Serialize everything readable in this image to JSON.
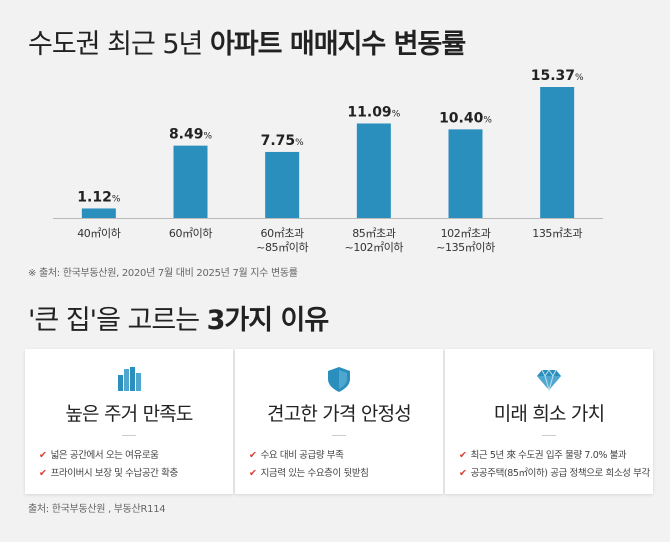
{
  "title_regular": "수도권 최근 5년 ",
  "title_bold": "아파트 매매지수 변동률",
  "chart_data": {
    "type": "bar",
    "title": "수도권 최근 5년 아파트 매매지수 변동률",
    "categories": [
      [
        "40㎡이하"
      ],
      [
        "60㎡이하"
      ],
      [
        "60㎡초과",
        "~85㎡이하"
      ],
      [
        "85㎡초과",
        "~102㎡이하"
      ],
      [
        "102㎡초과",
        "~135㎡이하"
      ],
      [
        "135㎡초과"
      ]
    ],
    "values": [
      1.12,
      8.49,
      7.75,
      11.09,
      10.4,
      15.37
    ],
    "value_labels": [
      "1.12",
      "8.49",
      "7.75",
      "11.09",
      "10.40",
      "15.37"
    ],
    "unit": "%",
    "ylim": [
      0,
      16
    ],
    "bar_color": "#2b8fbd",
    "grid": false,
    "legend": "none"
  },
  "source_chart": "※ 출처: 한국부동산원, 2020년 7월 대비 2025년 7월 지수 변동률",
  "subtitle_regular": "'큰 집'을 고르는 ",
  "subtitle_bold": "3가지 이유",
  "accent_color": "#2b8fbd",
  "check_color": "#d93a2b",
  "cards": [
    {
      "icon": "building-icon",
      "title": "높은 주거 만족도",
      "items": [
        "넓은 공간에서 오는 여유로움",
        "프라이버시 보장 및 수납공간 확충"
      ]
    },
    {
      "icon": "shield-icon",
      "title": "견고한 가격 안정성",
      "items": [
        "수요 대비 공급량 부족",
        "지금력 있는 수요층이 뒷받침"
      ]
    },
    {
      "icon": "diamond-icon",
      "title": "미래 희소 가치",
      "items": [
        "최근 5년 來 수도권 입주 물량 7.0% 불과",
        "공공주택(85㎡이하) 공급 정책으로 희소성 부각"
      ]
    }
  ],
  "source_bottom": "출처: 한국부동산원 , 부동산R114"
}
